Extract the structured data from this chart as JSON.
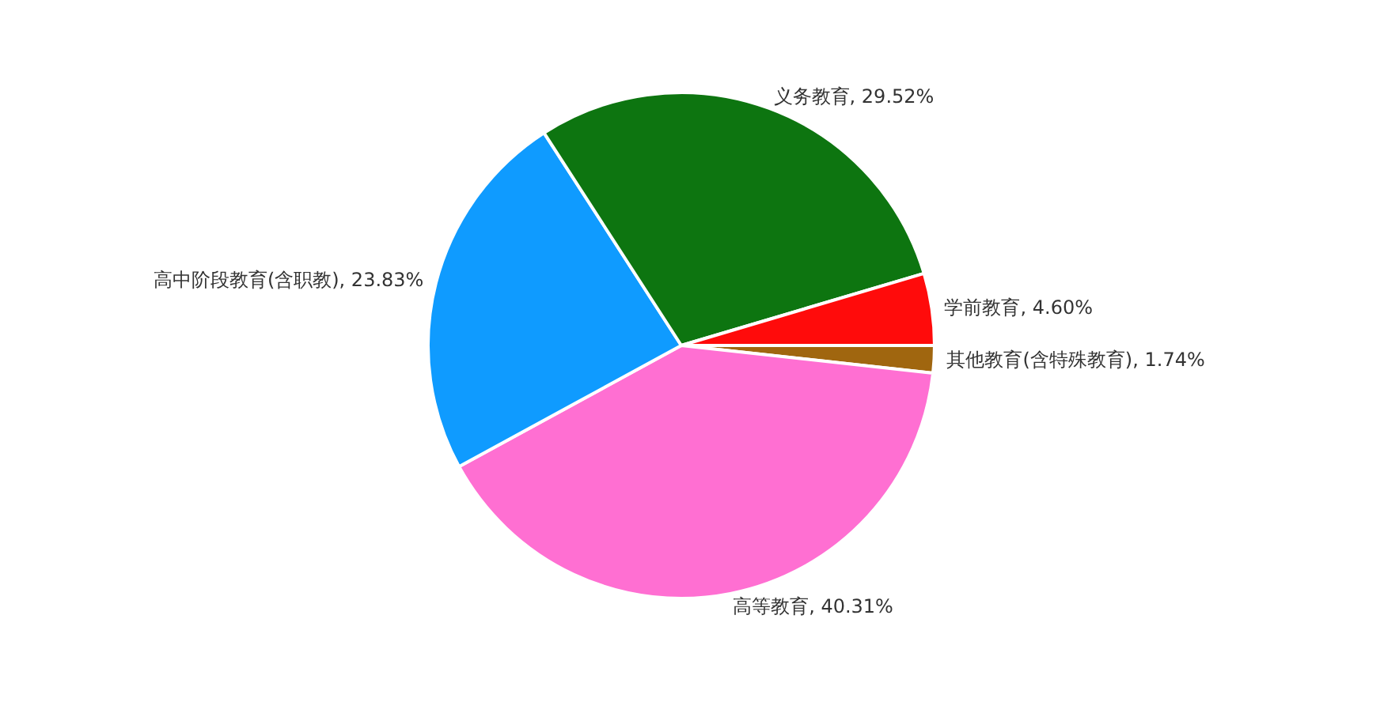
{
  "chart_data": {
    "type": "pie",
    "categories": [
      "其他教育(含特殊教育)",
      "高等教育",
      "高中阶段教育(含职教)",
      "义务教育",
      "学前教育"
    ],
    "values": [
      1.74,
      40.31,
      23.83,
      29.52,
      4.6
    ],
    "colors": [
      "#a0660f",
      "#ff6fd2",
      "#0f9bff",
      "#0d7510",
      "#ff0b0b"
    ],
    "value_labels": [
      "1.74%",
      "40.31%",
      "23.83%",
      "29.52%",
      "4.60%"
    ]
  }
}
